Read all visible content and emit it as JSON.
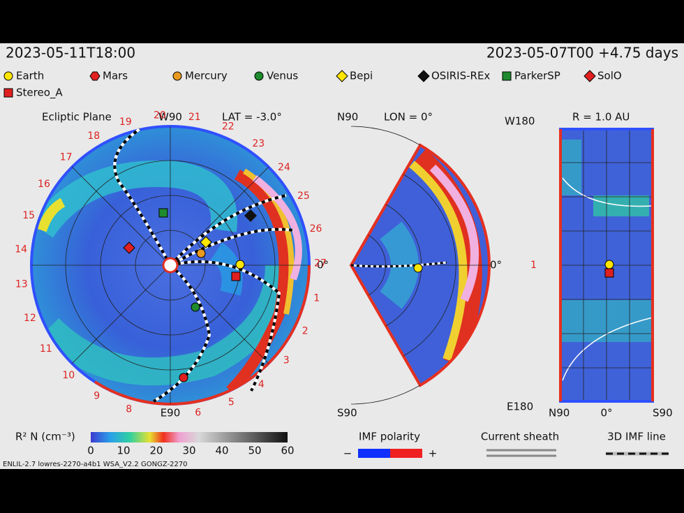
{
  "header": {
    "left": "2023-05-11T18:00",
    "right": "2023-05-07T00 +4.75 days"
  },
  "legend": [
    {
      "label": "Earth",
      "color": "#ffe600",
      "shape": "circle"
    },
    {
      "label": "Mars",
      "color": "#e02020",
      "shape": "hexagon"
    },
    {
      "label": "Mercury",
      "color": "#e89a20",
      "shape": "circle"
    },
    {
      "label": "Venus",
      "color": "#1f8a2e",
      "shape": "circle"
    },
    {
      "label": "Bepi",
      "color": "#ffe600",
      "shape": "diamond"
    },
    {
      "label": "OSIRIS-REx",
      "color": "#111111",
      "shape": "diamond"
    },
    {
      "label": "ParkerSP",
      "color": "#1f8a2e",
      "shape": "square"
    },
    {
      "label": "SolO",
      "color": "#e02020",
      "shape": "diamond"
    },
    {
      "label": "Stereo_A",
      "color": "#e02020",
      "shape": "square"
    }
  ],
  "ecliptic": {
    "title": "Ecliptic Plane",
    "top": "W90",
    "lat": "LAT = -3.0°",
    "bottom": "E90",
    "right": "0°",
    "longitudes": [
      "1",
      "2",
      "3",
      "4",
      "5",
      "6",
      "8",
      "9",
      "10",
      "11",
      "12",
      "13",
      "14",
      "15",
      "16",
      "17",
      "18",
      "19",
      "20",
      "21",
      "22",
      "23",
      "24",
      "25",
      "26",
      "27"
    ]
  },
  "meridional": {
    "top": "N90",
    "lon": "LON = 0°",
    "bottom": "S90",
    "right": "0°"
  },
  "radial": {
    "top_left": "W180",
    "title": "R = 1.0 AU",
    "mid": "1",
    "bottom_left": "E180",
    "bottom": [
      "N90",
      "0°",
      "S90"
    ]
  },
  "colorbar": {
    "label": "R² N (cm⁻³)",
    "ticks": [
      "0",
      "10",
      "20",
      "30",
      "40",
      "50",
      "60"
    ]
  },
  "imf_polarity": {
    "label": "IMF polarity",
    "minus": "−",
    "plus": "+"
  },
  "current_sheath": "Current sheath",
  "imf_line": "3D IMF line",
  "footer": "ENLIL-2.7 lowres-2270-a4b1 WSA_V2.2 GONGZ-2270"
}
